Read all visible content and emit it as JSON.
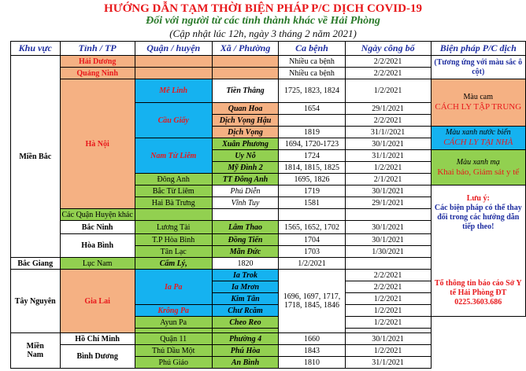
{
  "title": "HƯỚNG DẪN TẠM THỜI BIỆN PHÁP P/C DỊCH COVID-19",
  "subtitle": "Đối với người từ các tỉnh thành khác về Hải Phòng",
  "updated": "(Cập nhật lúc 12h, ngày 3 tháng 2 năm 2021)",
  "headers": [
    "Khu vực",
    "Tỉnh / TP",
    "Quận / huyện",
    "Xã / Phường",
    "Ca bệnh",
    "Ngày công bố",
    "Biện pháp P/C dịch"
  ],
  "regions": {
    "north": "Miền Bắc",
    "central": "Tây Nguyên",
    "south": "Miền Nam"
  },
  "provinces": {
    "hai_duong": "Hải Dương",
    "quang_ninh": "Quảng Ninh",
    "ha_noi": "Hà Nội",
    "bac_ninh": "Bắc Ninh",
    "hoa_binh": "Hòa Bình",
    "bac_giang": "Bắc Giang",
    "gia_lai": "Gia Lai",
    "ho_chi_minh": "Hồ Chí Minh",
    "binh_duong": "Bình Dương"
  },
  "districts": {
    "me_linh": "Mê Linh",
    "cau_giay": "Cầu Giấy",
    "nam_tu_liem": "Nam Từ Liêm",
    "dong_anh": "Đông Anh",
    "bac_tu_liem": "Bắc Từ Liêm",
    "hai_ba_trung": "Hai Bà Trưng",
    "cac_quan_khac": "Các Quận Huyện khác",
    "luong_tai": "Lương Tài",
    "tp_hoa_binh": "T.P Hòa Bình",
    "tan_lac": "Tân Lạc",
    "luc_nam": "Lục Nam",
    "ia_pa": "Ia Pa",
    "krong_pa": "Krông Pa",
    "ayun_pa": "Ayun Pa",
    "quan_11": "Quận 11",
    "thu_dau_mot": "Thủ Dầu Một",
    "phu_giao": "Phú Giáo"
  },
  "wards": {
    "tien_thang": "Tiền Thắng",
    "quan_hoa": "Quan Hoa",
    "dich_vong_hau": "Dịch Vọng Hậu",
    "dich_vong": "Dịch Vọng",
    "xuan_phuong": "Xuân Phương",
    "uy_no": "Uy Nỗ",
    "my_dinh_2": "Mỹ Đình 2",
    "tt_dong_anh": "TT Đông Anh",
    "phu_dien": "Phú Diễn",
    "vinh_tuy": "Vĩnh Tuy",
    "lam_thao": "Lâm Thao",
    "dong_tien": "Đồng Tiến",
    "man_duc": "Mãn Đức",
    "cam_ly": "Cẩm Lý,",
    "ia_trok": "Ia Trok",
    "ia_mron": "Ia Mrơn",
    "kim_tan": "Kim Tân",
    "chu_rcam": "Chư Rcăm",
    "cheo_reo": "Cheo Reo",
    "phuong_4": "Phường 4",
    "phu_hoa": "Phú Hòa",
    "an_binh": "An Bình"
  },
  "cases": {
    "hai_duong": "Nhiều ca bệnh",
    "quang_ninh": "Nhiều ca bệnh",
    "me_linh": "1725, 1823, 1824",
    "quan_hoa": "1654",
    "dich_vong": "1819",
    "xuan_phuong": "1694, 1720-1723",
    "uy_no": "1724",
    "my_dinh_2": "1814, 1815, 1825",
    "tt_dong_anh": "1695, 1826",
    "phu_dien": "1719",
    "vinh_tuy": "1581",
    "lam_thao": "1565, 1652, 1702",
    "dong_tien": "1704",
    "man_duc": "1703",
    "cam_ly": "1820",
    "gia_lai": "1696, 1697, 1717, 1718, 1845, 1846",
    "phuong_4": "1660",
    "phu_hoa": "1843",
    "an_binh": "1810"
  },
  "dates": {
    "hai_duong": "2/2/2021",
    "quang_ninh": "2/2/2021",
    "me_linh": "1/2/2021",
    "quan_hoa": "29/1/2021",
    "dich_vong_hau": "2/2/2021",
    "dich_vong": "31/1//2021",
    "xuan_phuong": "30/1/2021",
    "uy_no": "31/1/2021",
    "my_dinh_2": "1/2/2021",
    "tt_dong_anh": "2/1/2021",
    "phu_dien": "30/1/2021",
    "vinh_tuy": "29/1/2021",
    "lam_thao": "30/1/2021",
    "dong_tien": "30/1/2021",
    "man_duc": "1/30/2021",
    "cam_ly": "1/2/2021",
    "ia_trok": "2/2/2021",
    "ia_mron": "2/2/2021",
    "kim_tan": "1/2/2021",
    "chu_rcam": "1/2/2021",
    "cheo_reo": "1/2/2021",
    "phuong_4": "30/1/2021",
    "phu_hoa": "1/2/2021",
    "an_binh": "31/1/2021"
  },
  "measures": {
    "corresponding": "(Tương ứng với màu sắc ô cột)",
    "orange_label": "Màu cam",
    "orange_action": "CÁCH LY TẬP TRUNG",
    "blue_label": "Màu xanh nước biển",
    "blue_action": "CÁCH LY TẠI NHÀ",
    "green_label": "Màu xanh mạ",
    "green_action": "Khai báo, Giám sát y tế",
    "note_title": "Lưu ý:",
    "note_body": "Các biện pháp có thể thay đổi trong các hướng dẫn tiếp theo!",
    "report": "Tổ thông tin báo cáo Sở Y tế Hải Phòng ĐT 0225.3603.686"
  },
  "colors": {
    "orange": "#f5b183",
    "green": "#92d050",
    "blue": "#15b2f0",
    "red": "#e8191c",
    "navy": "#1f2ea0"
  }
}
